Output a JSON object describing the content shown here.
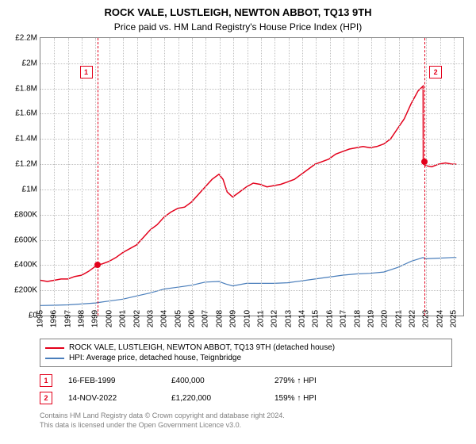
{
  "title": "ROCK VALE, LUSTLEIGH, NEWTON ABBOT, TQ13 9TH",
  "subtitle": "Price paid vs. HM Land Registry's House Price Index (HPI)",
  "chart": {
    "type": "line",
    "background_color": "#ffffff",
    "grid_color": "#c0c0c0",
    "border_color": "#808080",
    "xlim": [
      1995,
      2025.8
    ],
    "ylim": [
      0,
      2200000
    ],
    "ytick_step": 200000,
    "yticks": [
      {
        "v": 0,
        "label": "£0"
      },
      {
        "v": 200000,
        "label": "£200K"
      },
      {
        "v": 400000,
        "label": "£400K"
      },
      {
        "v": 600000,
        "label": "£600K"
      },
      {
        "v": 800000,
        "label": "£800K"
      },
      {
        "v": 1000000,
        "label": "£1M"
      },
      {
        "v": 1200000,
        "label": "£1.2M"
      },
      {
        "v": 1400000,
        "label": "£1.4M"
      },
      {
        "v": 1600000,
        "label": "£1.6M"
      },
      {
        "v": 1800000,
        "label": "£1.8M"
      },
      {
        "v": 2000000,
        "label": "£2M"
      },
      {
        "v": 2200000,
        "label": "£2.2M"
      }
    ],
    "xticks": [
      1995,
      1996,
      1997,
      1998,
      1999,
      2000,
      2001,
      2002,
      2003,
      2004,
      2005,
      2006,
      2007,
      2008,
      2009,
      2010,
      2011,
      2012,
      2013,
      2014,
      2015,
      2016,
      2017,
      2018,
      2019,
      2020,
      2021,
      2022,
      2023,
      2024,
      2025
    ],
    "series": [
      {
        "name": "ROCK VALE, LUSTLEIGH, NEWTON ABBOT, TQ13 9TH (detached house)",
        "color": "#e3001b",
        "line_width": 1.5,
        "points": [
          [
            1995,
            280000
          ],
          [
            1995.5,
            270000
          ],
          [
            1996,
            280000
          ],
          [
            1996.5,
            290000
          ],
          [
            1997,
            290000
          ],
          [
            1997.5,
            310000
          ],
          [
            1998,
            320000
          ],
          [
            1998.5,
            350000
          ],
          [
            1999.12,
            400000
          ],
          [
            1999.5,
            410000
          ],
          [
            2000,
            430000
          ],
          [
            2000.5,
            460000
          ],
          [
            2001,
            500000
          ],
          [
            2001.5,
            530000
          ],
          [
            2002,
            560000
          ],
          [
            2002.5,
            620000
          ],
          [
            2003,
            680000
          ],
          [
            2003.5,
            720000
          ],
          [
            2004,
            780000
          ],
          [
            2004.5,
            820000
          ],
          [
            2005,
            850000
          ],
          [
            2005.5,
            860000
          ],
          [
            2006,
            900000
          ],
          [
            2006.5,
            960000
          ],
          [
            2007,
            1020000
          ],
          [
            2007.5,
            1080000
          ],
          [
            2008,
            1120000
          ],
          [
            2008.3,
            1080000
          ],
          [
            2008.6,
            980000
          ],
          [
            2009,
            940000
          ],
          [
            2009.5,
            980000
          ],
          [
            2010,
            1020000
          ],
          [
            2010.5,
            1050000
          ],
          [
            2011,
            1040000
          ],
          [
            2011.5,
            1020000
          ],
          [
            2012,
            1030000
          ],
          [
            2012.5,
            1040000
          ],
          [
            2013,
            1060000
          ],
          [
            2013.5,
            1080000
          ],
          [
            2014,
            1120000
          ],
          [
            2014.5,
            1160000
          ],
          [
            2015,
            1200000
          ],
          [
            2015.5,
            1220000
          ],
          [
            2016,
            1240000
          ],
          [
            2016.5,
            1280000
          ],
          [
            2017,
            1300000
          ],
          [
            2017.5,
            1320000
          ],
          [
            2018,
            1330000
          ],
          [
            2018.5,
            1340000
          ],
          [
            2019,
            1330000
          ],
          [
            2019.5,
            1340000
          ],
          [
            2020,
            1360000
          ],
          [
            2020.5,
            1400000
          ],
          [
            2021,
            1480000
          ],
          [
            2021.5,
            1560000
          ],
          [
            2022,
            1680000
          ],
          [
            2022.5,
            1780000
          ],
          [
            2022.87,
            1820000
          ],
          [
            2022.88,
            1220000
          ],
          [
            2023,
            1190000
          ],
          [
            2023.5,
            1180000
          ],
          [
            2024,
            1200000
          ],
          [
            2024.5,
            1210000
          ],
          [
            2025,
            1200000
          ],
          [
            2025.3,
            1200000
          ]
        ]
      },
      {
        "name": "HPI: Average price, detached house, Teignbridge",
        "color": "#4a7ebb",
        "line_width": 1.2,
        "points": [
          [
            1995,
            80000
          ],
          [
            1996,
            82000
          ],
          [
            1997,
            85000
          ],
          [
            1998,
            92000
          ],
          [
            1999,
            100000
          ],
          [
            2000,
            115000
          ],
          [
            2001,
            130000
          ],
          [
            2002,
            155000
          ],
          [
            2003,
            180000
          ],
          [
            2004,
            210000
          ],
          [
            2005,
            225000
          ],
          [
            2006,
            240000
          ],
          [
            2007,
            265000
          ],
          [
            2008,
            270000
          ],
          [
            2008.5,
            250000
          ],
          [
            2009,
            235000
          ],
          [
            2010,
            255000
          ],
          [
            2011,
            255000
          ],
          [
            2012,
            255000
          ],
          [
            2013,
            260000
          ],
          [
            2014,
            275000
          ],
          [
            2015,
            290000
          ],
          [
            2016,
            305000
          ],
          [
            2017,
            320000
          ],
          [
            2018,
            330000
          ],
          [
            2019,
            335000
          ],
          [
            2020,
            345000
          ],
          [
            2021,
            380000
          ],
          [
            2022,
            430000
          ],
          [
            2022.87,
            460000
          ],
          [
            2023,
            450000
          ],
          [
            2024,
            455000
          ],
          [
            2025,
            460000
          ],
          [
            2025.3,
            460000
          ]
        ]
      }
    ],
    "sale_markers": [
      {
        "num": "1",
        "x": 1999.12,
        "y": 400000,
        "color": "#e3001b"
      },
      {
        "num": "2",
        "x": 2022.87,
        "y": 1220000,
        "color": "#e3001b"
      }
    ],
    "label_fontsize": 10,
    "title_fontsize": 13
  },
  "legend": {
    "items": [
      {
        "color": "#e3001b",
        "label": "ROCK VALE, LUSTLEIGH, NEWTON ABBOT, TQ13 9TH (detached house)"
      },
      {
        "color": "#4a7ebb",
        "label": "HPI: Average price, detached house, Teignbridge"
      }
    ]
  },
  "events": [
    {
      "num": "1",
      "color": "#e3001b",
      "date": "16-FEB-1999",
      "price": "£400,000",
      "pct": "279% ↑ HPI"
    },
    {
      "num": "2",
      "color": "#e3001b",
      "date": "14-NOV-2022",
      "price": "£1,220,000",
      "pct": "159% ↑ HPI"
    }
  ],
  "footer": {
    "line1": "Contains HM Land Registry data © Crown copyright and database right 2024.",
    "line2": "This data is licensed under the Open Government Licence v3.0."
  }
}
